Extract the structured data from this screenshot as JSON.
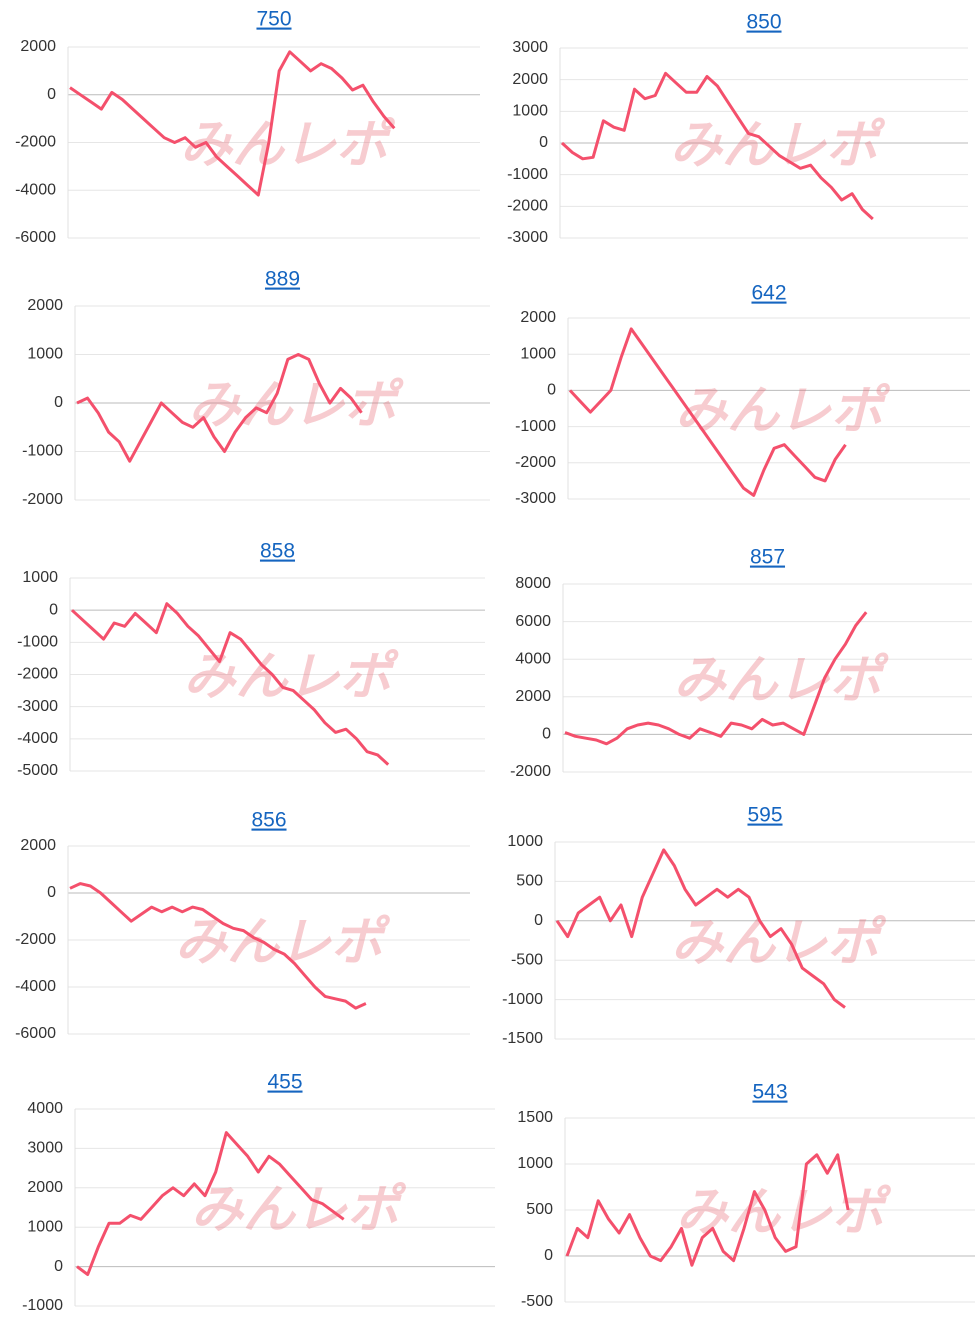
{
  "chart_data": [
    {
      "type": "line",
      "title": "750",
      "watermark": "みんレポ",
      "ylim": [
        -6000,
        2000
      ],
      "yticks": [
        -6000,
        -4000,
        -2000,
        0,
        2000
      ],
      "grid": true,
      "series": [
        {
          "color": "#f4506c",
          "values": [
            300,
            0,
            -300,
            -600,
            100,
            -200,
            -600,
            -1000,
            -1400,
            -1800,
            -2000,
            -1800,
            -2200,
            -2000,
            -2600,
            -3000,
            -3400,
            -3800,
            -4200,
            -2000,
            1000,
            1800,
            1400,
            1000,
            1300,
            1100,
            700,
            200,
            400,
            -300,
            -900,
            -1400,
            null,
            null,
            null,
            null,
            null,
            null,
            null,
            null
          ]
        }
      ]
    },
    {
      "type": "line",
      "title": "850",
      "watermark": "みんレポ",
      "ylim": [
        -3000,
        3000
      ],
      "yticks": [
        -3000,
        -2000,
        -1000,
        0,
        1000,
        2000,
        3000
      ],
      "grid": true,
      "series": [
        {
          "color": "#f4506c",
          "values": [
            0,
            -300,
            -500,
            -450,
            700,
            500,
            400,
            1700,
            1400,
            1500,
            2200,
            1900,
            1600,
            1600,
            2100,
            1800,
            1300,
            800,
            300,
            200,
            -100,
            -400,
            -600,
            -800,
            -700,
            -1100,
            -1400,
            -1800,
            -1600,
            -2100,
            -2400,
            null,
            null,
            null,
            null,
            null,
            null,
            null,
            null,
            null
          ]
        }
      ]
    },
    {
      "type": "line",
      "title": "889",
      "watermark": "みんレポ",
      "ylim": [
        -2000,
        2000
      ],
      "yticks": [
        -2000,
        -1000,
        0,
        1000,
        2000
      ],
      "grid": true,
      "series": [
        {
          "color": "#f4506c",
          "values": [
            0,
            100,
            -200,
            -600,
            -800,
            -1200,
            -800,
            -400,
            0,
            -200,
            -400,
            -500,
            -300,
            -700,
            -1000,
            -600,
            -300,
            -100,
            -200,
            200,
            900,
            1000,
            900,
            400,
            0,
            300,
            100,
            -200,
            null,
            null,
            null,
            null,
            null,
            null,
            null,
            null,
            null,
            null,
            null,
            null
          ]
        }
      ]
    },
    {
      "type": "line",
      "title": "642",
      "watermark": "みんレポ",
      "ylim": [
        -3000,
        2000
      ],
      "yticks": [
        -3000,
        -2000,
        -1000,
        0,
        1000,
        2000
      ],
      "grid": true,
      "series": [
        {
          "color": "#f4506c",
          "values": [
            0,
            -300,
            -600,
            -300,
            0,
            900,
            1700,
            1300,
            900,
            500,
            100,
            -300,
            -700,
            -1100,
            -1500,
            -1900,
            -2300,
            -2700,
            -2900,
            -2200,
            -1600,
            -1500,
            -1800,
            -2100,
            -2400,
            -2500,
            -1900,
            -1500,
            null,
            null,
            null,
            null,
            null,
            null,
            null,
            null,
            null,
            null,
            null,
            null
          ]
        }
      ]
    },
    {
      "type": "line",
      "title": "858",
      "watermark": "みんレポ",
      "ylim": [
        -5000,
        1000
      ],
      "yticks": [
        -5000,
        -4000,
        -3000,
        -2000,
        -1000,
        0,
        1000
      ],
      "grid": true,
      "series": [
        {
          "color": "#f4506c",
          "values": [
            0,
            -300,
            -600,
            -900,
            -400,
            -500,
            -100,
            -400,
            -700,
            200,
            -100,
            -500,
            -800,
            -1200,
            -1600,
            -700,
            -900,
            -1300,
            -1700,
            -2000,
            -2400,
            -2500,
            -2800,
            -3100,
            -3500,
            -3800,
            -3700,
            -4000,
            -4400,
            -4500,
            -4800,
            null,
            null,
            null,
            null,
            null,
            null,
            null,
            null,
            null
          ]
        }
      ]
    },
    {
      "type": "line",
      "title": "857",
      "watermark": "みんレポ",
      "ylim": [
        -2000,
        8000
      ],
      "yticks": [
        -2000,
        0,
        2000,
        4000,
        6000,
        8000
      ],
      "grid": true,
      "series": [
        {
          "color": "#f4506c",
          "values": [
            100,
            -100,
            -200,
            -300,
            -500,
            -200,
            300,
            500,
            600,
            500,
            300,
            0,
            -200,
            300,
            100,
            -100,
            600,
            500,
            300,
            800,
            500,
            600,
            300,
            0,
            1500,
            3000,
            4000,
            4800,
            5800,
            6500,
            null,
            null,
            null,
            null,
            null,
            null,
            null,
            null,
            null,
            null
          ]
        }
      ]
    },
    {
      "type": "line",
      "title": "856",
      "watermark": "みんレポ",
      "ylim": [
        -6000,
        2000
      ],
      "yticks": [
        -6000,
        -4000,
        -2000,
        0,
        2000
      ],
      "grid": true,
      "series": [
        {
          "color": "#f4506c",
          "values": [
            200,
            400,
            300,
            0,
            -400,
            -800,
            -1200,
            -900,
            -600,
            -800,
            -600,
            -800,
            -600,
            -700,
            -1000,
            -1300,
            -1500,
            -1600,
            -1900,
            -2100,
            -2400,
            -2600,
            -3000,
            -3500,
            -4000,
            -4400,
            -4500,
            -4600,
            -4900,
            -4700,
            null,
            null,
            null,
            null,
            null,
            null,
            null,
            null,
            null,
            null
          ]
        }
      ]
    },
    {
      "type": "line",
      "title": "595",
      "watermark": "みんレポ",
      "ylim": [
        -1500,
        1000
      ],
      "yticks": [
        -1500,
        -1000,
        -500,
        0,
        500,
        1000
      ],
      "grid": true,
      "series": [
        {
          "color": "#f4506c",
          "values": [
            0,
            -200,
            100,
            200,
            300,
            0,
            200,
            -200,
            300,
            600,
            900,
            700,
            400,
            200,
            300,
            400,
            300,
            400,
            300,
            0,
            -200,
            -100,
            -300,
            -600,
            -700,
            -800,
            -1000,
            -1100,
            null,
            null,
            null,
            null,
            null,
            null,
            null,
            null,
            null,
            null,
            null,
            null
          ]
        }
      ]
    },
    {
      "type": "line",
      "title": "455",
      "watermark": "みんレポ",
      "ylim": [
        -1000,
        4000
      ],
      "yticks": [
        -1000,
        0,
        1000,
        2000,
        3000,
        4000
      ],
      "grid": true,
      "series": [
        {
          "color": "#f4506c",
          "values": [
            0,
            -200,
            500,
            1100,
            1100,
            1300,
            1200,
            1500,
            1800,
            2000,
            1800,
            2100,
            1800,
            2400,
            3400,
            3100,
            2800,
            2400,
            2800,
            2600,
            2300,
            2000,
            1700,
            1600,
            1400,
            1200,
            null,
            null,
            null,
            null,
            null,
            null,
            null,
            null,
            null,
            null,
            null,
            null,
            null,
            null
          ]
        }
      ]
    },
    {
      "type": "line",
      "title": "543",
      "watermark": "みんレポ",
      "ylim": [
        -500,
        1500
      ],
      "yticks": [
        -500,
        0,
        500,
        1000,
        1500
      ],
      "grid": true,
      "series": [
        {
          "color": "#f4506c",
          "values": [
            0,
            300,
            200,
            600,
            400,
            250,
            450,
            200,
            0,
            -50,
            100,
            300,
            -100,
            200,
            300,
            50,
            -50,
            300,
            700,
            500,
            200,
            50,
            100,
            1000,
            1100,
            900,
            1100,
            500,
            null,
            null,
            null,
            null,
            null,
            null,
            null,
            null,
            null,
            null,
            null,
            null
          ]
        }
      ]
    }
  ]
}
